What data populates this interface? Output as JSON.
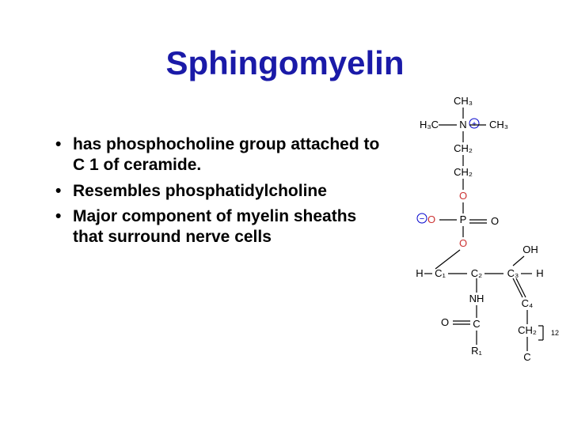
{
  "title": {
    "text": "Sphingomyelin",
    "color": "#1a1aa8",
    "fontsize": 42
  },
  "bullets": {
    "color": "#000000",
    "fontsize": 21,
    "items": [
      "has phosphocholine group attached to C 1 of ceramide.",
      "Resembles phosphatidylcholine",
      "Major component of myelin sheaths that surround nerve cells"
    ]
  },
  "chem": {
    "label_color": "#000000",
    "bond_color": "#000000",
    "highlight_color": "#cc3333",
    "negative_circle_color": "#0000cc",
    "font_size": 13,
    "subscript_size": 9,
    "labels": {
      "CH3_top": "CH₃",
      "H3C": "H₃C",
      "N": "N",
      "CH3_r": "CH₃",
      "CH2_a": "CH₂",
      "CH2_b": "CH₂",
      "O_top": "O",
      "minus": "−",
      "O_left": "O",
      "P": "P",
      "O_dbl": "O",
      "O_bottom": "O",
      "OH": "OH",
      "H_left": "H",
      "C1": "C₁",
      "C2": "C₂",
      "C3": "C₃",
      "H_right": "H",
      "NH": "NH",
      "Odbl2": "O",
      "C_amide": "C",
      "C4": "C₄",
      "R1": "R₁",
      "CH2_tail": "CH₂",
      "twelve": "12",
      "C_end": "C"
    }
  }
}
